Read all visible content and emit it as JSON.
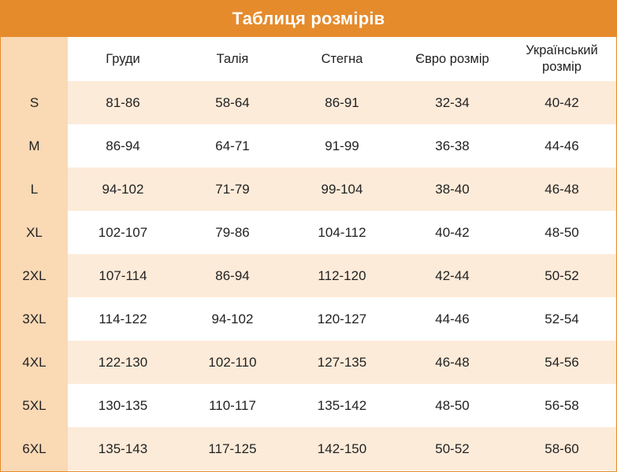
{
  "title": "Таблиця розмірів",
  "columns": [
    "Груди",
    "Талія",
    "Стегна",
    "Євро розмір",
    "Український розмір"
  ],
  "rows": [
    {
      "size": "S",
      "values": [
        "81-86",
        "58-64",
        "86-91",
        "32-34",
        "40-42"
      ]
    },
    {
      "size": "M",
      "values": [
        "86-94",
        "64-71",
        "91-99",
        "36-38",
        "44-46"
      ]
    },
    {
      "size": "L",
      "values": [
        "94-102",
        "71-79",
        "99-104",
        "38-40",
        "46-48"
      ]
    },
    {
      "size": "XL",
      "values": [
        "102-107",
        "79-86",
        "104-112",
        "40-42",
        "48-50"
      ]
    },
    {
      "size": "2XL",
      "values": [
        "107-114",
        "86-94",
        "112-120",
        "42-44",
        "50-52"
      ]
    },
    {
      "size": "3XL",
      "values": [
        "114-122",
        "94-102",
        "120-127",
        "44-46",
        "52-54"
      ]
    },
    {
      "size": "4XL",
      "values": [
        "122-130",
        "102-110",
        "127-135",
        "46-48",
        "54-56"
      ]
    },
    {
      "size": "5XL",
      "values": [
        "130-135",
        "110-117",
        "135-142",
        "48-50",
        "56-58"
      ]
    },
    {
      "size": "6XL",
      "values": [
        "135-143",
        "117-125",
        "142-150",
        "50-52",
        "58-60"
      ]
    }
  ],
  "colors": {
    "header": "#e58b2c",
    "size_column": "#fad9b5",
    "row_shaded": "#fdebd9",
    "row_plain": "#ffffff"
  }
}
